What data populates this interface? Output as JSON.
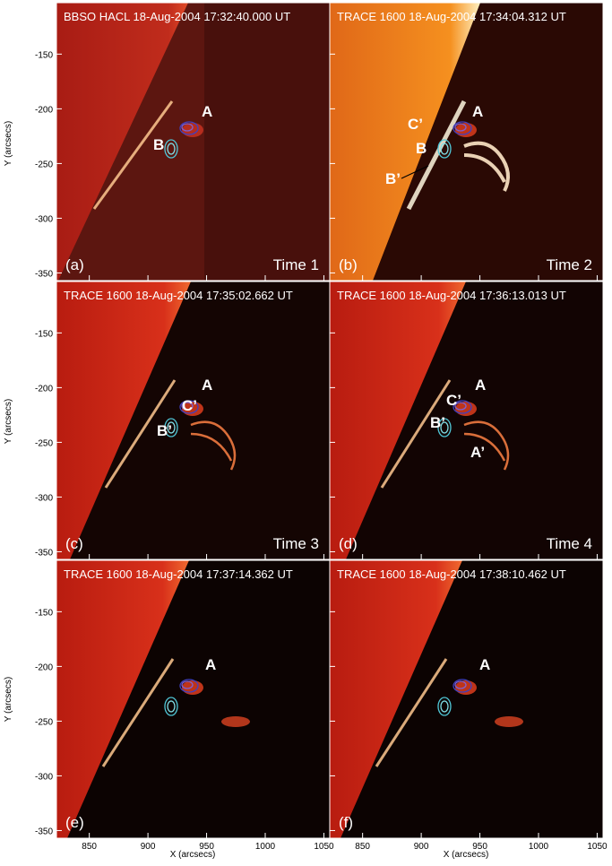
{
  "figure": {
    "y_label": "Y (arcsecs)",
    "x_label": "X (arcsecs)",
    "xlim": [
      822,
      1055
    ],
    "xticks": [
      850,
      900,
      950,
      1000,
      1050
    ],
    "ylim": [
      -357,
      -103
    ],
    "yticks": [
      -150,
      -200,
      -250,
      -300,
      -350
    ],
    "panels": [
      {
        "title": "BBSO HACL 18-Aug-2004 17:32:40.000 UT",
        "label": "(a)",
        "time": "Time 1",
        "annotations": [
          "A",
          "B"
        ]
      },
      {
        "title": "TRACE 1600 18-Aug-2004 17:34:04.312 UT",
        "label": "(b)",
        "time": "Time 2",
        "annotations": [
          "A",
          "C’",
          "B",
          "B’"
        ]
      },
      {
        "title": "TRACE 1600 18-Aug-2004 17:35:02.662 UT",
        "label": "(c)",
        "time": "Time 3",
        "annotations": [
          "A",
          "C’",
          "B’"
        ]
      },
      {
        "title": "TRACE 1600 18-Aug-2004 17:36:13.013 UT",
        "label": "(d)",
        "time": "Time 4",
        "annotations": [
          "A",
          "C’",
          "B’",
          "A’"
        ]
      },
      {
        "title": "TRACE 1600 18-Aug-2004 17:37:14.362 UT",
        "label": "(e)",
        "annotations": [
          "A"
        ]
      },
      {
        "title": "TRACE 1600 18-Aug-2004 17:38:10.462 UT",
        "label": "(f)",
        "annotations": [
          "A"
        ]
      }
    ]
  }
}
